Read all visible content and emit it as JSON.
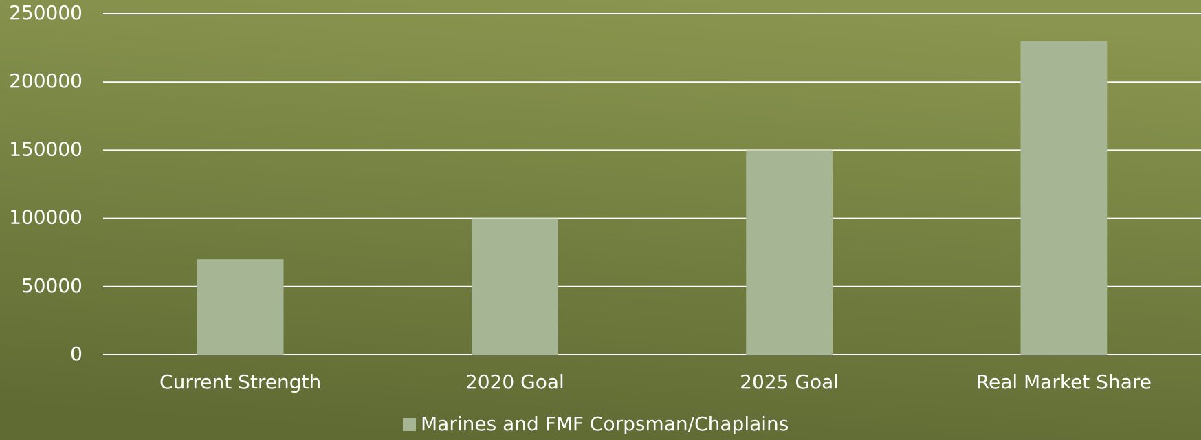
{
  "chart_data": {
    "type": "bar",
    "categories": [
      "Current Strength",
      "2020 Goal",
      "2025 Goal",
      "Real Market Share"
    ],
    "series": [
      {
        "name": "Marines and FMF Corpsman/Chaplains",
        "color": "#a6b593",
        "values": [
          70000,
          100000,
          150000,
          230000
        ]
      }
    ],
    "ylim": [
      0,
      250000
    ],
    "yticks": [
      0,
      50000,
      100000,
      150000,
      200000,
      250000
    ],
    "grid": true,
    "legend": "bottom"
  }
}
